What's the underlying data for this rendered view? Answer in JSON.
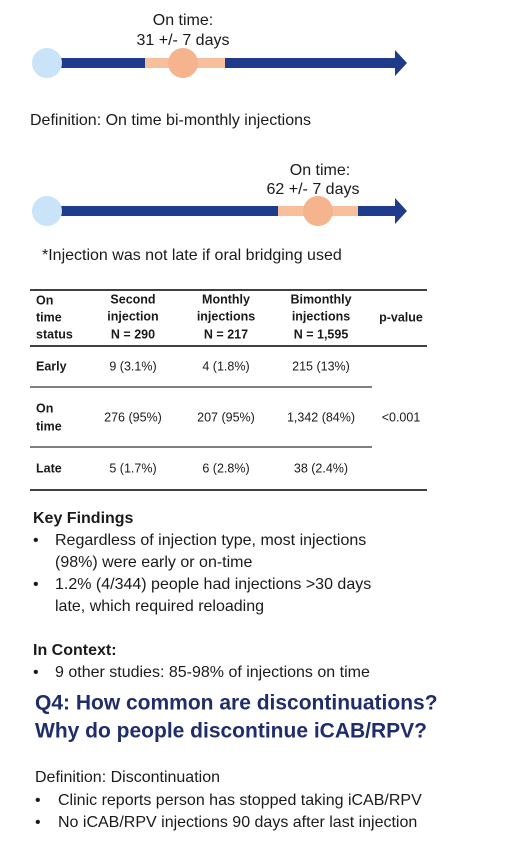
{
  "timelines": [
    {
      "label": "On time:",
      "range": "31 +/- 7 days"
    },
    {
      "label": "On time:",
      "range": "62 +/- 7 days"
    }
  ],
  "definition": "Definition: On time bi-monthly injections",
  "note": "*Injection was not late if oral bridging used",
  "table": {
    "header": [
      [
        "On",
        "time",
        "status"
      ],
      [
        "Second",
        "injection",
        "N = 290"
      ],
      [
        "Monthly",
        "injections",
        "N = 217"
      ],
      [
        "Bimonthly",
        "injections",
        "N = 1,595"
      ],
      [
        "p-value"
      ]
    ],
    "rows": [
      [
        [
          "Early"
        ],
        "9 (3.1%)",
        "4 (1.8%)",
        "215 (13%)"
      ],
      [
        [
          "On",
          "time"
        ],
        "276 (95%)",
        "207 (95%)",
        "1,342 (84%)"
      ],
      [
        [
          "Late"
        ],
        "5 (1.7%)",
        "6 (2.8%)",
        "38 (2.4%)"
      ]
    ],
    "p_value": "<0.001"
  },
  "key_findings": {
    "title": "Key Findings",
    "bullets": [
      [
        "Regardless of injection type, most injections",
        "(98%) were early or on-time"
      ],
      [
        "1.2% (4/344) people had injections >30 days",
        "late, which required reloading"
      ]
    ]
  },
  "context": {
    "title": "In Context:",
    "bullets": [
      "9 other studies: 85-98% of injections on time"
    ]
  },
  "question": [
    "Q4: How common are discontinuations?",
    "Why do people discontinue iCAB/RPV?"
  ],
  "discontinuation": {
    "title": "Definition: Discontinuation",
    "bullets": [
      "Clinic reports person has stopped taking iCAB/RPV",
      "No iCAB/RPV injections 90 days after last injection"
    ]
  }
}
